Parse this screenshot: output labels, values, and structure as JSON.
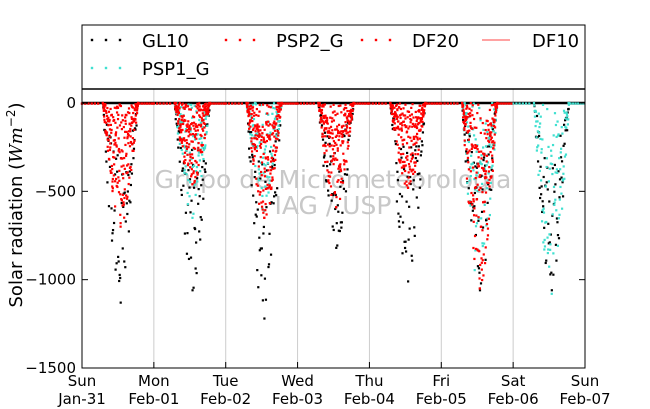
{
  "chart_data": {
    "type": "scatter",
    "ylabel_prefix": "Solar radiation (",
    "ylabel_unit": "Wm",
    "ylabel_exp": "−2",
    "ylabel_suffix": ")",
    "ylim": [
      -1500,
      80
    ],
    "xlim_days": [
      0,
      7
    ],
    "grid": "x",
    "legend_location": "top",
    "yticks": [
      {
        "value": 0,
        "label": "0"
      },
      {
        "value": -500,
        "label": "−500"
      },
      {
        "value": -1000,
        "label": "−1000"
      },
      {
        "value": -1500,
        "label": "−1500"
      }
    ],
    "xticks": [
      {
        "day": 0,
        "weekday": "Sun",
        "date": "Jan-31"
      },
      {
        "day": 1,
        "weekday": "Mon",
        "date": "Feb-01"
      },
      {
        "day": 2,
        "weekday": "Tue",
        "date": "Feb-02"
      },
      {
        "day": 3,
        "weekday": "Wed",
        "date": "Feb-03"
      },
      {
        "day": 4,
        "weekday": "Thu",
        "date": "Feb-04"
      },
      {
        "day": 5,
        "weekday": "Fri",
        "date": "Feb-05"
      },
      {
        "day": 6,
        "weekday": "Sat",
        "date": "Feb-06"
      },
      {
        "day": 7,
        "weekday": "Sun",
        "date": "Feb-07"
      }
    ],
    "series": [
      {
        "name": "GL10",
        "color": "#000000",
        "marker": "dots",
        "daily_min": [
          -1130,
          -1060,
          -1220,
          -820,
          -1010,
          -1060,
          -1060
        ]
      },
      {
        "name": "PSP2_G",
        "color": "#ff0000",
        "marker": "dots",
        "daily_min": [
          -700,
          -460,
          -650,
          -590,
          -480,
          -1050,
          null
        ]
      },
      {
        "name": "DF20",
        "color": "#ff0000",
        "marker": "dots",
        "daily_min": [
          -680,
          -460,
          -650,
          -590,
          -480,
          -1050,
          null
        ]
      },
      {
        "name": "DF10",
        "color": "#ff6b6b",
        "marker": "line",
        "values": [
          0,
          0,
          0,
          0,
          0,
          0,
          0,
          0
        ]
      },
      {
        "name": "PSP1_G",
        "color": "#40e0d0",
        "marker": "dots",
        "daily_min": [
          null,
          -650,
          -610,
          null,
          null,
          -1050,
          -1080
        ]
      }
    ]
  },
  "watermark": {
    "line1": "Grupo de Micrometeorologia",
    "line2": "IAG / USP"
  }
}
